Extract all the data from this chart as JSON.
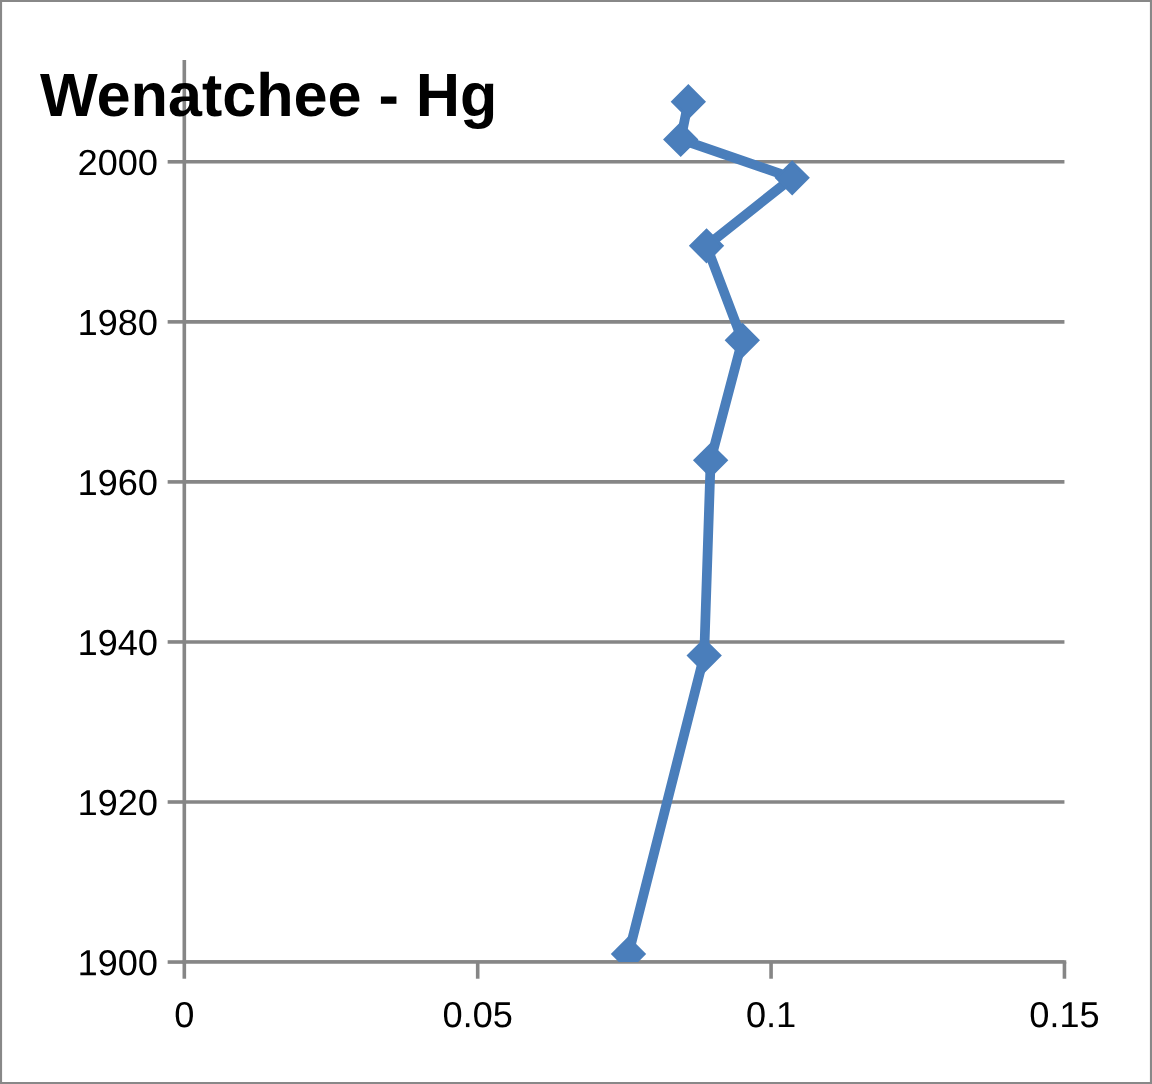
{
  "chart_data": {
    "type": "line",
    "title": "Wenatchee - Hg",
    "series": [
      {
        "color": "#4a7ebb",
        "x": [
          0.0757,
          0.0886,
          0.0897,
          0.0951,
          0.089,
          0.1036,
          0.0846,
          0.0859
        ],
        "values": [
          1901,
          1938.3,
          1962.7,
          1977.7,
          1989.5,
          1998,
          2002.8,
          2007.5
        ]
      }
    ],
    "xlim": [
      0,
      0.15
    ],
    "xticks": [
      0,
      0.05,
      0.1,
      0.15
    ],
    "ylim": [
      1900,
      2012.5
    ],
    "yticks": [
      1900,
      1920,
      1940,
      1960,
      1980,
      2000
    ],
    "grid": "y",
    "marker": "diamond",
    "line_style": "solid",
    "legend": false
  }
}
